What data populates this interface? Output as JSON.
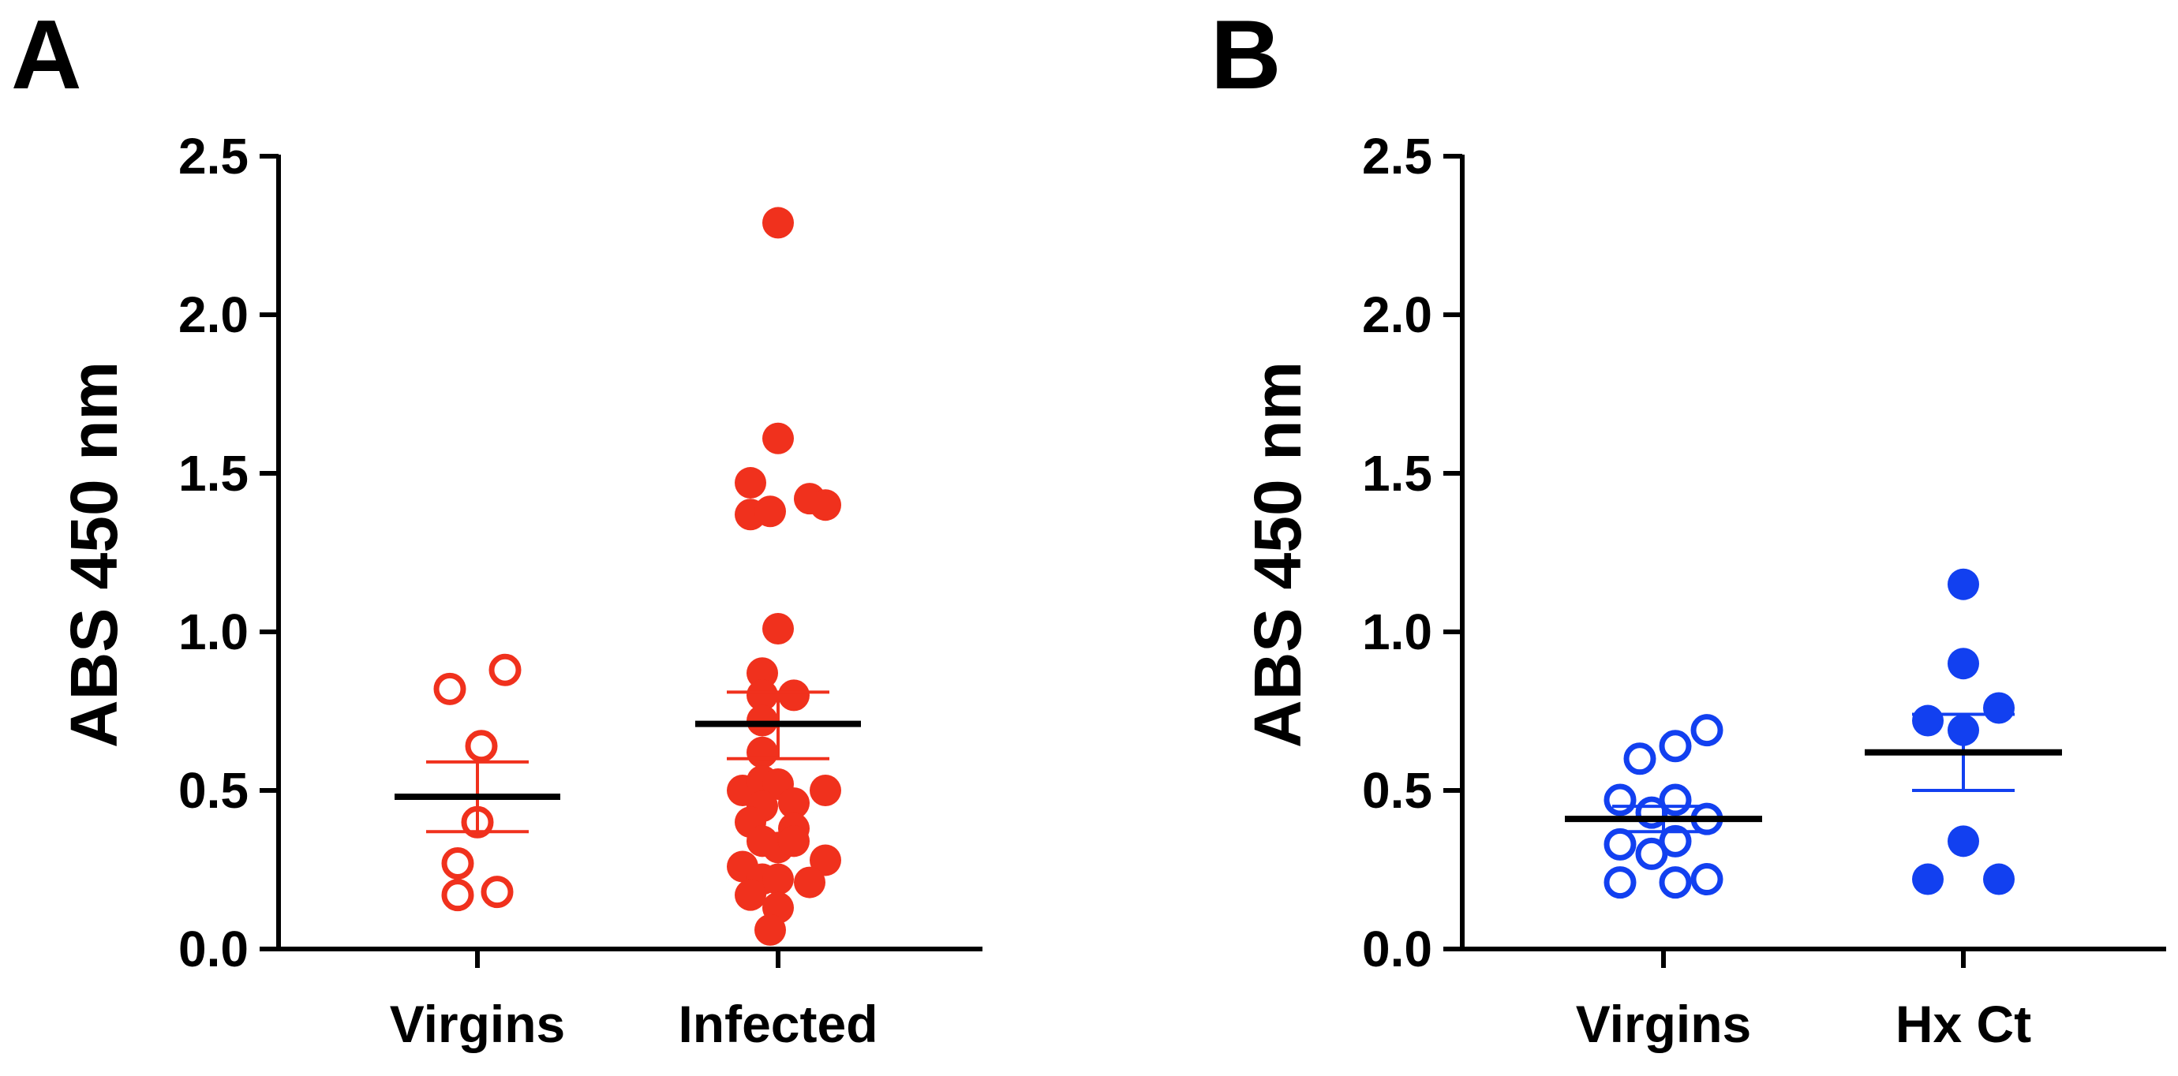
{
  "chart_data": [
    {
      "panel": "A",
      "type": "scatter",
      "ylabel": "ABS 450 nm",
      "ylim": [
        0,
        2.5
      ],
      "yticks": [
        "0.0",
        "0.5",
        "1.0",
        "1.5",
        "2.0",
        "2.5"
      ],
      "categories": [
        "Virgins",
        "Infected"
      ],
      "groups": [
        {
          "name": "Virgins",
          "marker": "open-circle",
          "color": "#f0311d",
          "mean": 0.48,
          "sem_low": 0.37,
          "sem_high": 0.59,
          "points": [
            {
              "x": -0.35,
              "y": 0.82
            },
            {
              "x": 0.35,
              "y": 0.88
            },
            {
              "x": 0.05,
              "y": 0.64
            },
            {
              "x": 0.0,
              "y": 0.4
            },
            {
              "x": -0.25,
              "y": 0.27
            },
            {
              "x": -0.25,
              "y": 0.17
            },
            {
              "x": 0.25,
              "y": 0.18
            }
          ]
        },
        {
          "name": "Infected",
          "marker": "filled-circle",
          "color": "#f0311d",
          "mean": 0.71,
          "sem_low": 0.6,
          "sem_high": 0.81,
          "points": [
            {
              "x": 0.0,
              "y": 2.29
            },
            {
              "x": 0.0,
              "y": 1.61
            },
            {
              "x": -0.35,
              "y": 1.47
            },
            {
              "x": 0.4,
              "y": 1.42
            },
            {
              "x": 0.6,
              "y": 1.4
            },
            {
              "x": -0.35,
              "y": 1.37
            },
            {
              "x": -0.1,
              "y": 1.38
            },
            {
              "x": 0.0,
              "y": 1.01
            },
            {
              "x": -0.2,
              "y": 0.87
            },
            {
              "x": -0.2,
              "y": 0.8
            },
            {
              "x": 0.2,
              "y": 0.8
            },
            {
              "x": -0.2,
              "y": 0.72
            },
            {
              "x": -0.2,
              "y": 0.62
            },
            {
              "x": -0.45,
              "y": 0.5
            },
            {
              "x": -0.2,
              "y": 0.53
            },
            {
              "x": 0.0,
              "y": 0.52
            },
            {
              "x": 0.6,
              "y": 0.5
            },
            {
              "x": -0.2,
              "y": 0.45
            },
            {
              "x": 0.2,
              "y": 0.46
            },
            {
              "x": -0.35,
              "y": 0.4
            },
            {
              "x": 0.2,
              "y": 0.38
            },
            {
              "x": 0.0,
              "y": 0.32
            },
            {
              "x": -0.2,
              "y": 0.34
            },
            {
              "x": 0.2,
              "y": 0.34
            },
            {
              "x": -0.45,
              "y": 0.26
            },
            {
              "x": 0.6,
              "y": 0.28
            },
            {
              "x": -0.2,
              "y": 0.22
            },
            {
              "x": 0.0,
              "y": 0.22
            },
            {
              "x": 0.4,
              "y": 0.21
            },
            {
              "x": -0.35,
              "y": 0.17
            },
            {
              "x": 0.0,
              "y": 0.13
            },
            {
              "x": -0.1,
              "y": 0.06
            }
          ]
        }
      ]
    },
    {
      "panel": "B",
      "type": "scatter",
      "ylabel": "ABS 450 nm",
      "ylim": [
        0,
        2.5
      ],
      "yticks": [
        "0.0",
        "0.5",
        "1.0",
        "1.5",
        "2.0",
        "2.5"
      ],
      "categories": [
        "Virgins",
        "Hx Ct"
      ],
      "groups": [
        {
          "name": "Virgins",
          "marker": "open-circle",
          "color": "#1240f0",
          "mean": 0.41,
          "sem_low": 0.37,
          "sem_high": 0.45,
          "points": [
            {
              "x": 0.55,
              "y": 0.69
            },
            {
              "x": 0.15,
              "y": 0.64
            },
            {
              "x": -0.3,
              "y": 0.6
            },
            {
              "x": -0.55,
              "y": 0.47
            },
            {
              "x": 0.15,
              "y": 0.47
            },
            {
              "x": -0.15,
              "y": 0.43
            },
            {
              "x": 0.55,
              "y": 0.41
            },
            {
              "x": -0.55,
              "y": 0.33
            },
            {
              "x": 0.15,
              "y": 0.34
            },
            {
              "x": -0.15,
              "y": 0.3
            },
            {
              "x": -0.55,
              "y": 0.21
            },
            {
              "x": 0.15,
              "y": 0.21
            },
            {
              "x": 0.55,
              "y": 0.22
            }
          ]
        },
        {
          "name": "Hx Ct",
          "marker": "filled-circle",
          "color": "#1240f0",
          "mean": 0.62,
          "sem_low": 0.5,
          "sem_high": 0.74,
          "points": [
            {
              "x": 0.0,
              "y": 1.15
            },
            {
              "x": 0.0,
              "y": 0.9
            },
            {
              "x": -0.45,
              "y": 0.72
            },
            {
              "x": 0.45,
              "y": 0.76
            },
            {
              "x": 0.0,
              "y": 0.69
            },
            {
              "x": 0.0,
              "y": 0.34
            },
            {
              "x": -0.45,
              "y": 0.22
            },
            {
              "x": 0.45,
              "y": 0.22
            }
          ]
        }
      ]
    }
  ]
}
